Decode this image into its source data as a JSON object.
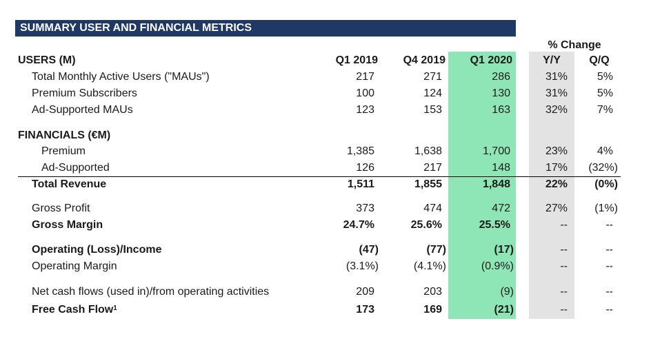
{
  "title": "SUMMARY USER AND FINANCIAL METRICS",
  "pct_change_label": "% Change",
  "columns": {
    "q1_2019": "Q1 2019",
    "q4_2019": "Q4 2019",
    "q1_2020": "Q1 2020",
    "yy": "Y/Y",
    "qq": "Q/Q"
  },
  "users_header": "USERS (M)",
  "financials_header": "FINANCIALS (€M)",
  "rows": [
    {
      "label": "Total Monthly Active Users (\"MAUs\")",
      "q1_2019": "217",
      "q4_2019": "271",
      "q1_2020": "286",
      "yy": "31%",
      "qq": "5%"
    },
    {
      "label": "Premium Subscribers",
      "q1_2019": "100",
      "q4_2019": "124",
      "q1_2020": "130",
      "yy": "31%",
      "qq": "5%"
    },
    {
      "label": "Ad-Supported MAUs",
      "q1_2019": "123",
      "q4_2019": "153",
      "q1_2020": "163",
      "yy": "32%",
      "qq": "7%"
    },
    {
      "label": "Premium",
      "q1_2019": "1,385",
      "q4_2019": "1,638",
      "q1_2020": "1,700",
      "yy": "23%",
      "qq": "4%"
    },
    {
      "label": "Ad-Supported",
      "q1_2019": "126",
      "q4_2019": "217",
      "q1_2020": "148",
      "yy": "17%",
      "qq": "(32%)"
    },
    {
      "label": "Total Revenue",
      "q1_2019": "1,511",
      "q4_2019": "1,855",
      "q1_2020": "1,848",
      "yy": "22%",
      "qq": "(0%)"
    },
    {
      "label": "Gross Profit",
      "q1_2019": "373",
      "q4_2019": "474",
      "q1_2020": "472",
      "yy": "27%",
      "qq": "(1%)"
    },
    {
      "label": "Gross Margin",
      "q1_2019": "24.7%",
      "q4_2019": "25.6%",
      "q1_2020": "25.5%",
      "yy": "--",
      "qq": "--"
    },
    {
      "label": "Operating (Loss)/Income",
      "q1_2019": "(47)",
      "q4_2019": "(77)",
      "q1_2020": "(17)",
      "yy": "--",
      "qq": "--"
    },
    {
      "label": "Operating Margin",
      "q1_2019": "(3.1%)",
      "q4_2019": "(4.1%)",
      "q1_2020": "(0.9%)",
      "yy": "--",
      "qq": "--"
    },
    {
      "label": "Net cash flows (used in)/from operating activities",
      "q1_2019": "209",
      "q4_2019": "203",
      "q1_2020": "(9)",
      "yy": "--",
      "qq": "--"
    },
    {
      "label": "Free Cash Flow",
      "footnote": "1",
      "q1_2019": "173",
      "q4_2019": "169",
      "q1_2020": "(21)",
      "yy": "--",
      "qq": "--"
    }
  ]
}
